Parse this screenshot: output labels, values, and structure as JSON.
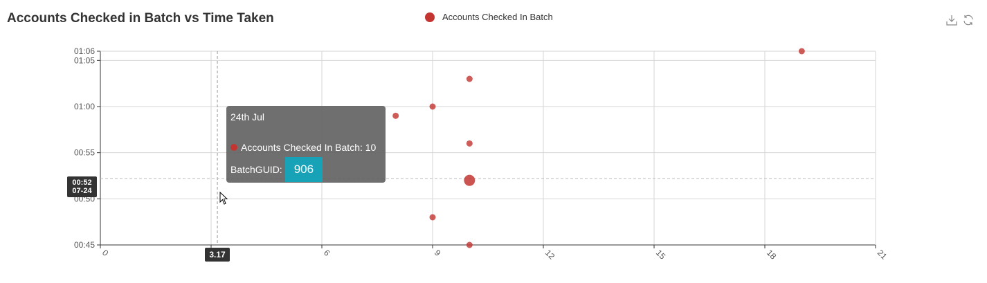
{
  "header": {
    "title": "Accounts Checked in Batch vs Time Taken"
  },
  "legend": {
    "label": "Accounts Checked In Batch",
    "color": "#c23531"
  },
  "toolbox": {
    "icons": [
      "download-icon",
      "refresh-icon"
    ]
  },
  "chart_data": {
    "type": "scatter",
    "title": "Accounts Checked in Batch vs Time Taken",
    "xlabel": "",
    "ylabel": "",
    "xlim": [
      0,
      21
    ],
    "ylim_minutes": [
      45,
      66
    ],
    "x_ticks": [
      "0",
      "3",
      "6",
      "9",
      "12",
      "15",
      "18",
      "21"
    ],
    "y_ticks": [
      {
        "label": "00:45",
        "value": 45
      },
      {
        "label": "00:50",
        "value": 50
      },
      {
        "label": "00:55",
        "value": 55
      },
      {
        "label": "01:00",
        "value": 60
      },
      {
        "label": "01:05",
        "value": 65
      },
      {
        "label": "01:06",
        "value": 66
      }
    ],
    "grid": true,
    "legend_position": "top-center",
    "series": [
      {
        "name": "Accounts Checked In Batch",
        "color": "#c23531",
        "points": [
          {
            "x": 19,
            "y": 66
          },
          {
            "x": 10,
            "y": 63
          },
          {
            "x": 9,
            "y": 60
          },
          {
            "x": 8,
            "y": 59
          },
          {
            "x": 10,
            "y": 56
          },
          {
            "x": 10,
            "y": 52,
            "highlighted": true
          },
          {
            "x": 9,
            "y": 48
          },
          {
            "x": 10,
            "y": 45
          }
        ]
      }
    ]
  },
  "tooltip": {
    "date": "24th Jul",
    "series_label": "Accounts Checked In Batch: 10",
    "guid_label": "BatchGUID:",
    "guid_value": "906"
  },
  "crosshair": {
    "y_badge_time": "00:52",
    "y_badge_date": "07-24",
    "x_badge": "3.17"
  }
}
